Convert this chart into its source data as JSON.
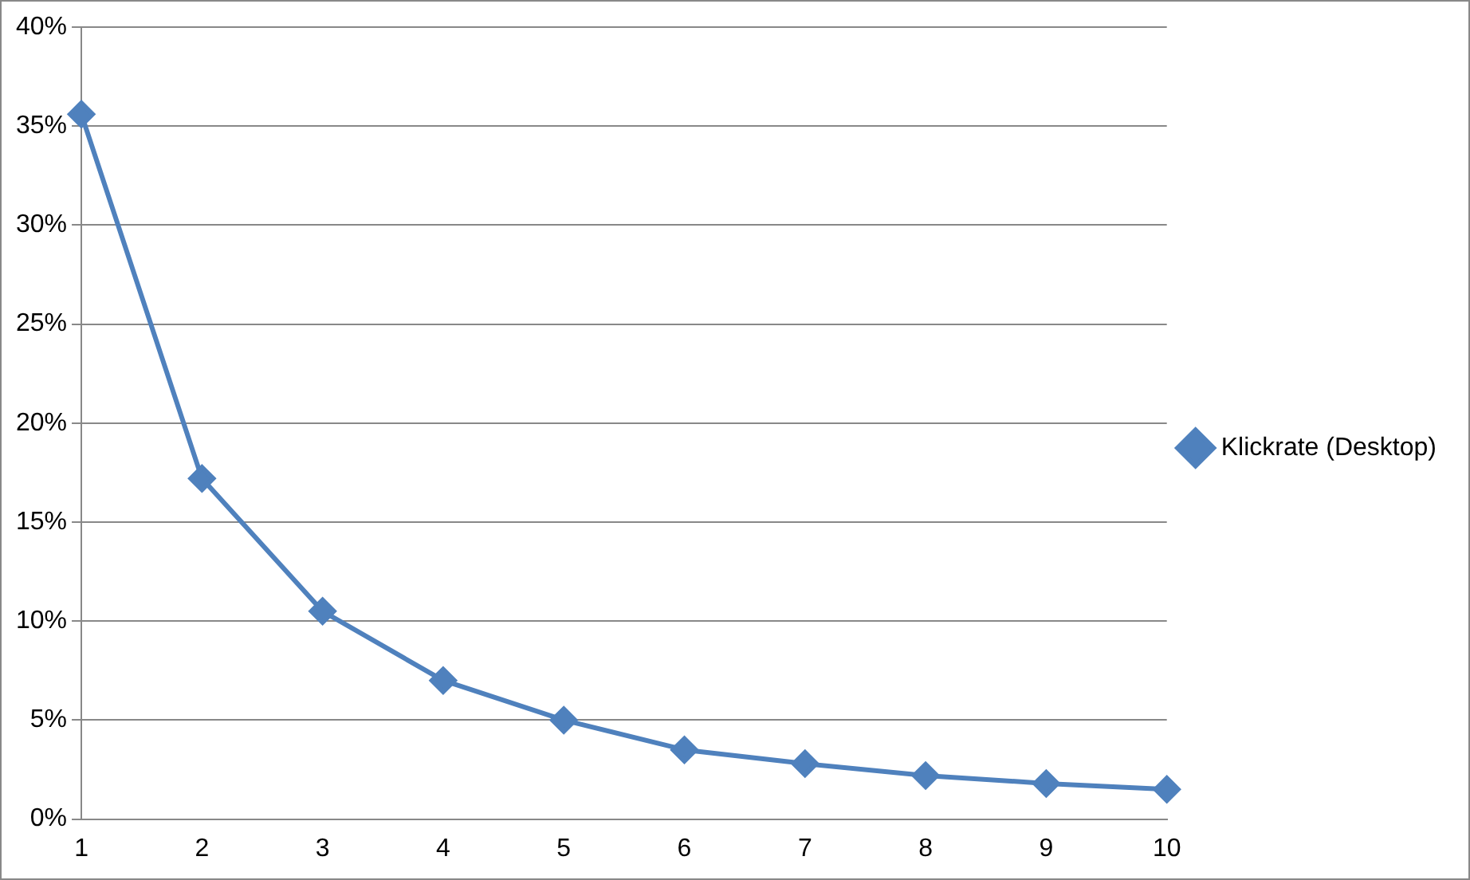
{
  "chart_data": {
    "type": "line",
    "categories": [
      "1",
      "2",
      "3",
      "4",
      "5",
      "6",
      "7",
      "8",
      "9",
      "10"
    ],
    "series": [
      {
        "name": "Klickrate (Desktop)",
        "color": "#4f81bd",
        "values": [
          35.6,
          17.2,
          10.5,
          7.0,
          5.0,
          3.5,
          2.8,
          2.2,
          1.8,
          1.5
        ]
      }
    ],
    "ylim": [
      0,
      40
    ],
    "yticks": [
      {
        "value": 0,
        "label": "0%"
      },
      {
        "value": 5,
        "label": "5%"
      },
      {
        "value": 10,
        "label": "10%"
      },
      {
        "value": 15,
        "label": "15%"
      },
      {
        "value": 20,
        "label": "20%"
      },
      {
        "value": 25,
        "label": "25%"
      },
      {
        "value": 30,
        "label": "30%"
      },
      {
        "value": 35,
        "label": "35%"
      },
      {
        "value": 40,
        "label": "40%"
      }
    ],
    "grid": "y",
    "legend": "right",
    "marker": "diamond",
    "line_style": "solid"
  }
}
